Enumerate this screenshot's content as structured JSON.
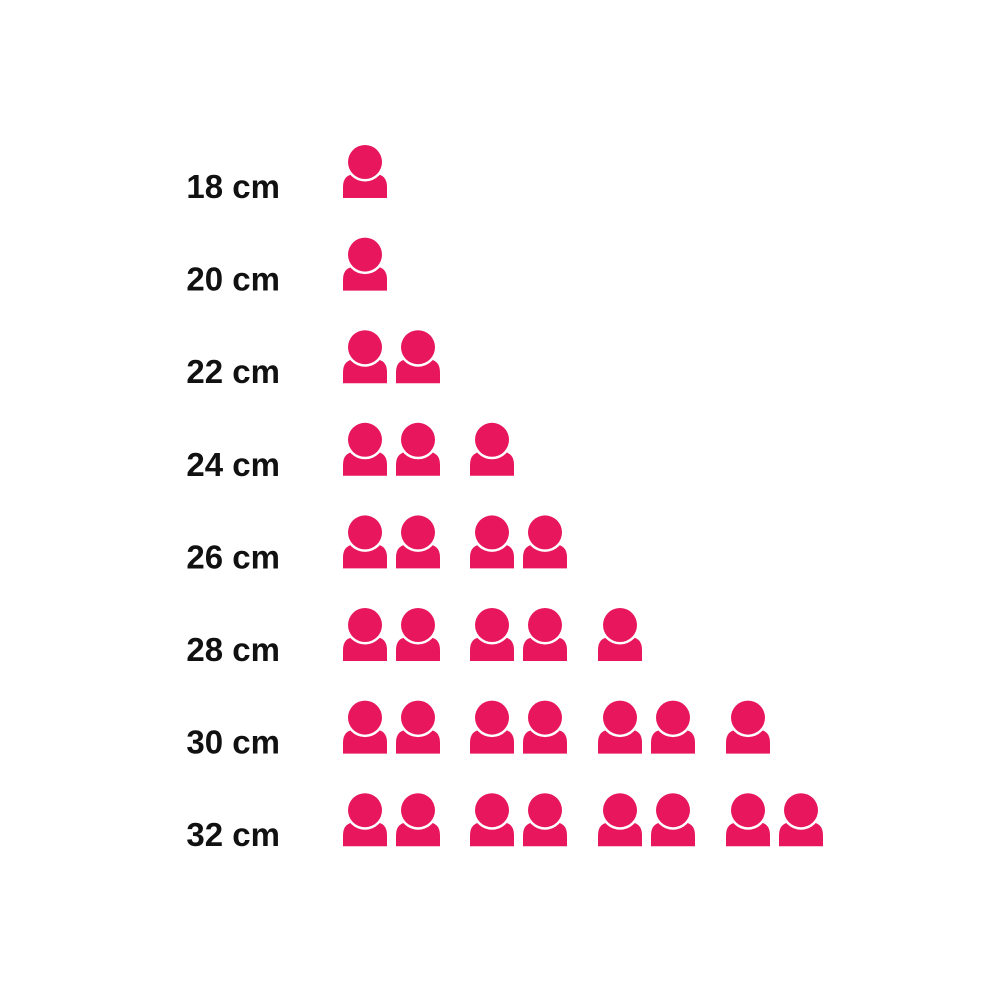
{
  "chart_data": {
    "type": "pictograph",
    "categories": [
      "18 cm",
      "20 cm",
      "22 cm",
      "24 cm",
      "26 cm",
      "28 cm",
      "30 cm",
      "32 cm"
    ],
    "values": [
      1,
      1,
      2,
      3,
      4,
      5,
      7,
      8
    ],
    "icon": "person-icon",
    "icon_color": "#e8175d",
    "title": "",
    "xlabel": "",
    "ylabel": ""
  }
}
